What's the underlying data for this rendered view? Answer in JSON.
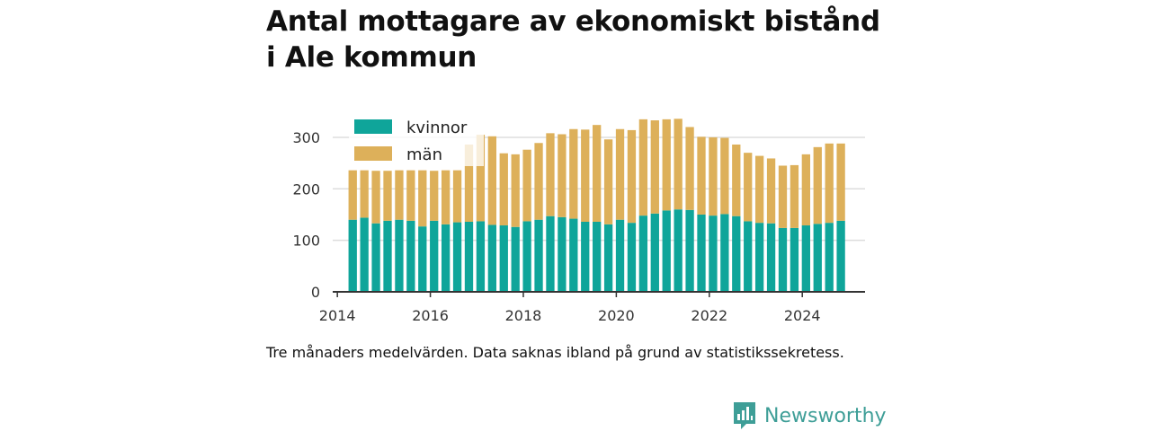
{
  "title_lines": [
    "Antal mottagare av ekonomiskt bistånd",
    "i Ale kommun"
  ],
  "note": "Tre månaders medelvärden. Data saknas ibland på grund av statistikssekretess.",
  "brand": {
    "name": "Newsworthy",
    "icon": "newsworthy-logo-icon",
    "color": "#3e9e97"
  },
  "colors": {
    "kvinnor": "#0fa59a",
    "man": "#ddb05a",
    "grid": "#dddddd",
    "axis": "#333333"
  },
  "chart_data": {
    "type": "bar",
    "stacked": true,
    "x_unit": "year",
    "xlim": [
      2013.9,
      2025.35
    ],
    "ylim": [
      0,
      340
    ],
    "yticks": [
      0,
      100,
      200,
      300
    ],
    "xticks": [
      "2014",
      "2016",
      "2018",
      "2020",
      "2022",
      "2024"
    ],
    "xtick_values": [
      2014,
      2016,
      2018,
      2020,
      2022,
      2024
    ],
    "grid": true,
    "legend": {
      "placement": "top-left",
      "entries": [
        "kvinnor",
        "män"
      ]
    },
    "x": [
      2014.33,
      2014.58,
      2014.83,
      2015.08,
      2015.33,
      2015.58,
      2015.83,
      2016.08,
      2016.33,
      2016.58,
      2016.83,
      2017.08,
      2017.33,
      2017.58,
      2017.83,
      2018.08,
      2018.33,
      2018.58,
      2018.83,
      2019.08,
      2019.33,
      2019.58,
      2019.83,
      2020.08,
      2020.33,
      2020.58,
      2020.83,
      2021.08,
      2021.33,
      2021.58,
      2021.83,
      2022.08,
      2022.33,
      2022.58,
      2022.83,
      2023.08,
      2023.33,
      2023.58,
      2023.83,
      2024.08,
      2024.33,
      2024.58,
      2024.83
    ],
    "series": [
      {
        "name": "kvinnor",
        "values": [
          140,
          144,
          133,
          138,
          140,
          138,
          127,
          138,
          131,
          135,
          136,
          137,
          130,
          129,
          126,
          137,
          140,
          147,
          145,
          142,
          136,
          136,
          131,
          140,
          134,
          148,
          152,
          158,
          160,
          159,
          150,
          148,
          151,
          147,
          137,
          134,
          133,
          124,
          124,
          129,
          132,
          134,
          138
        ]
      },
      {
        "name": "män",
        "values": [
          96,
          92,
          102,
          97,
          96,
          98,
          109,
          97,
          105,
          101,
          150,
          168,
          172,
          140,
          141,
          139,
          149,
          161,
          161,
          174,
          179,
          188,
          165,
          176,
          180,
          187,
          181,
          177,
          176,
          161,
          151,
          152,
          148,
          139,
          133,
          130,
          126,
          121,
          122,
          138,
          149,
          154,
          150
        ]
      }
    ]
  }
}
